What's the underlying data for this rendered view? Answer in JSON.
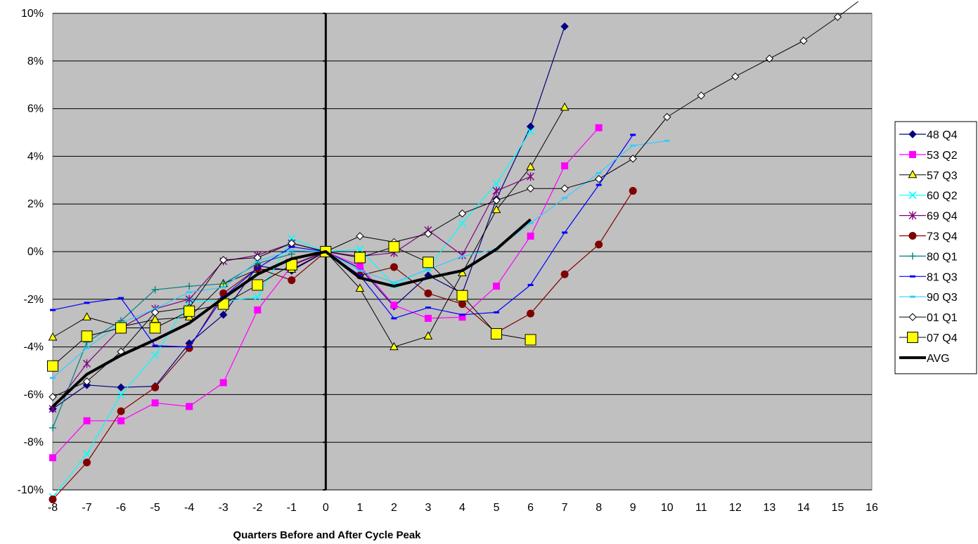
{
  "chart_data": {
    "type": "line",
    "title": "",
    "xlabel": "Quarters Before and After Cycle Peak",
    "ylabel": "",
    "xlim": [
      -8,
      16
    ],
    "ylim": [
      -10,
      10
    ],
    "x_ticks": [
      "-8",
      "-7",
      "-6",
      "-5",
      "-4",
      "-3",
      "-2",
      "-1",
      "0",
      "1",
      "2",
      "3",
      "4",
      "5",
      "6",
      "7",
      "8",
      "9",
      "10",
      "11",
      "12",
      "13",
      "14",
      "15",
      "16"
    ],
    "y_ticks": [
      "-10%",
      "-8%",
      "-6%",
      "-4%",
      "-2%",
      "0%",
      "2%",
      "4%",
      "6%",
      "8%",
      "10%"
    ],
    "grid": true,
    "plot_background": "#c0c0c0",
    "legend_position": "right",
    "series": [
      {
        "name": "48 Q4",
        "color": "#000080",
        "marker": "diamond",
        "width": 1.2,
        "x": [
          -8,
          -7,
          -6,
          -5,
          -4,
          -3,
          -2,
          -1,
          0,
          1,
          2,
          3,
          4,
          5,
          6,
          7
        ],
        "y": [
          -6.6,
          -5.6,
          -5.7,
          -5.65,
          -3.85,
          -2.65,
          -0.6,
          -0.8,
          0,
          -0.7,
          -2.3,
          -1.0,
          -1.75,
          2.2,
          5.25,
          9.45
        ]
      },
      {
        "name": "53 Q2",
        "color": "#ff00ff",
        "marker": "square",
        "width": 1.2,
        "x": [
          -8,
          -7,
          -6,
          -5,
          -4,
          -3,
          -2,
          -1,
          0,
          1,
          2,
          3,
          4,
          5,
          6,
          7,
          8
        ],
        "y": [
          -8.65,
          -7.1,
          -7.1,
          -6.35,
          -6.5,
          -5.5,
          -2.45,
          -0.6,
          0,
          -0.6,
          -2.25,
          -2.8,
          -2.75,
          -1.45,
          0.65,
          3.6,
          5.2
        ]
      },
      {
        "name": "57 Q3",
        "color": "#000000",
        "marker": "triangle",
        "width": 1.0,
        "x": [
          -8,
          -7,
          -6,
          -5,
          -4,
          -3,
          -2,
          -1,
          0,
          1,
          2,
          3,
          4,
          5,
          6,
          7
        ],
        "y": [
          -3.6,
          -2.75,
          -3.15,
          -2.85,
          -2.75,
          -1.35,
          -0.75,
          -0.75,
          0,
          -1.55,
          -4.0,
          -3.55,
          -0.9,
          1.75,
          3.55,
          6.05
        ]
      },
      {
        "name": "60 Q2",
        "color": "#00ffff",
        "marker": "x",
        "width": 1.2,
        "x": [
          -8,
          -7,
          -6,
          -5,
          -4,
          -3,
          -2,
          -1,
          0,
          1,
          2,
          3,
          4,
          5,
          6
        ],
        "y": [
          -10.3,
          -8.5,
          -6.0,
          -4.35,
          -2.05,
          -2.1,
          -1.9,
          0.55,
          0,
          0.1,
          -1.4,
          -0.7,
          1.2,
          2.85,
          5.05
        ]
      },
      {
        "name": "69 Q4",
        "color": "#800080",
        "marker": "star",
        "width": 1.2,
        "x": [
          -8,
          -7,
          -6,
          -5,
          -4,
          -3,
          -2,
          -1,
          0,
          1,
          2,
          3,
          4,
          5,
          6
        ],
        "y": [
          -6.6,
          -4.7,
          -3.2,
          -2.4,
          -2.0,
          -0.4,
          -0.15,
          0.35,
          0,
          -0.2,
          -0.05,
          0.9,
          -0.15,
          2.55,
          3.15
        ]
      },
      {
        "name": "73 Q4",
        "color": "#800000",
        "marker": "circle",
        "width": 1.2,
        "x": [
          -8,
          -7,
          -6,
          -5,
          -4,
          -3,
          -2,
          -1,
          0,
          1,
          2,
          3,
          4,
          5,
          6,
          7,
          8,
          9
        ],
        "y": [
          -10.4,
          -8.85,
          -6.7,
          -5.7,
          -4.05,
          -1.75,
          -0.7,
          -1.2,
          0,
          -1.0,
          -0.65,
          -1.75,
          -2.2,
          -3.4,
          -2.6,
          -0.95,
          0.3,
          2.55
        ]
      },
      {
        "name": "80 Q1",
        "color": "#008080",
        "marker": "plus",
        "width": 1.2,
        "x": [
          -8,
          -7,
          -6,
          -5,
          -4,
          -3,
          -2,
          -1
        ],
        "y": [
          -7.4,
          -3.8,
          -2.9,
          -1.6,
          -1.45,
          -1.35,
          -0.5,
          -0.1
        ]
      },
      {
        "name": "81 Q3",
        "color": "#0000ff",
        "marker": "dash",
        "width": 1.2,
        "x": [
          -8,
          -7,
          -6,
          -5,
          -4,
          -3,
          -2,
          -1,
          0,
          1,
          2,
          3,
          4,
          5,
          6,
          7,
          8,
          9
        ],
        "y": [
          -2.45,
          -2.15,
          -1.95,
          -3.95,
          -4.0,
          -1.9,
          -0.7,
          0.2,
          0,
          -1.0,
          -2.8,
          -2.35,
          -2.65,
          -2.55,
          -1.4,
          0.8,
          2.8,
          4.9
        ]
      },
      {
        "name": "90 Q3",
        "color": "#33ccff",
        "marker": "dash",
        "width": 1.2,
        "x": [
          -8,
          -7,
          -6,
          -5,
          -4,
          -3,
          -2,
          -1,
          0,
          1,
          2,
          3,
          4,
          5,
          6,
          7,
          8,
          9,
          10
        ],
        "y": [
          -5.3,
          -4.05,
          -3.0,
          -2.4,
          -1.7,
          -1.5,
          -0.4,
          0.05,
          0,
          -0.8,
          -1.3,
          -0.75,
          -0.2,
          0.1,
          1.2,
          2.25,
          3.3,
          4.45,
          4.65
        ]
      },
      {
        "name": "01 Q1",
        "color": "#000000",
        "marker": "diamond-open",
        "width": 1.0,
        "x": [
          -8,
          -7,
          -6,
          -5,
          -4,
          -3,
          -2,
          -1,
          0,
          1,
          2,
          3,
          4,
          5,
          6,
          7,
          8,
          9,
          10,
          11,
          12,
          13,
          14,
          15,
          15.6
        ],
        "y": [
          -6.1,
          -5.45,
          -4.2,
          -2.55,
          -2.35,
          -0.35,
          -0.25,
          0.35,
          0,
          0.65,
          0.4,
          0.75,
          1.6,
          2.15,
          2.65,
          2.65,
          3.05,
          3.9,
          5.65,
          6.55,
          7.35,
          8.1,
          8.85,
          9.85,
          10.5
        ]
      },
      {
        "name": "07 Q4",
        "color": "#000000",
        "marker": "square-yellow",
        "width": 1.0,
        "x": [
          -8,
          -7,
          -6,
          -5,
          -4,
          -3,
          -2,
          -1,
          0,
          1,
          2,
          3,
          4,
          5,
          6
        ],
        "y": [
          -4.8,
          -3.55,
          -3.2,
          -3.2,
          -2.5,
          -2.2,
          -1.4,
          -0.55,
          0,
          -0.25,
          0.2,
          -0.45,
          -1.85,
          -3.45,
          -3.7
        ]
      },
      {
        "name": "AVG",
        "color": "#000000",
        "marker": "none",
        "width": 4,
        "x": [
          -8,
          -7,
          -6,
          -5,
          -4,
          -3,
          -2,
          -1,
          0,
          1,
          2,
          3,
          4,
          5,
          6
        ],
        "y": [
          -6.5,
          -5.15,
          -4.35,
          -3.7,
          -3.0,
          -1.95,
          -0.95,
          -0.3,
          0,
          -1.1,
          -1.45,
          -1.1,
          -0.8,
          0.1,
          1.35
        ]
      }
    ]
  }
}
